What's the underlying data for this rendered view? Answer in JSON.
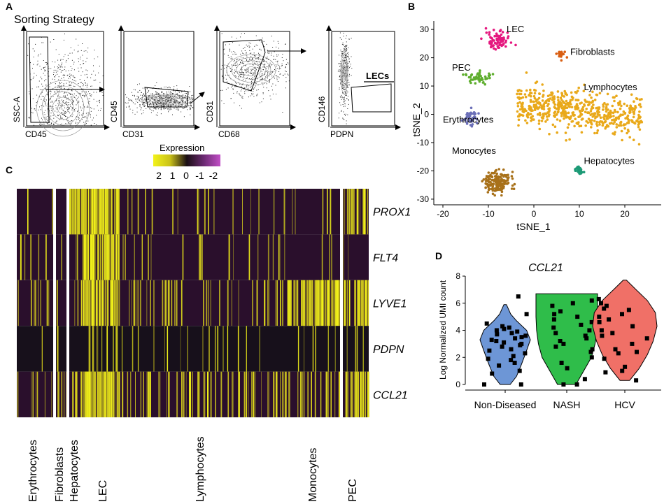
{
  "panels": {
    "a": "A",
    "b": "B",
    "c": "C",
    "d": "D"
  },
  "sorting": {
    "title": "Sorting Strategy",
    "gates": [
      {
        "ylabel": "SSC-A",
        "xlabel": "CD45"
      },
      {
        "ylabel": "CD45",
        "xlabel": "CD31"
      },
      {
        "ylabel": "CD31",
        "xlabel": "CD68"
      },
      {
        "ylabel": "CD146",
        "xlabel": "PDPN"
      }
    ],
    "gate_label": "LECs"
  },
  "chart_data": [
    {
      "type": "scatter",
      "title": "",
      "xlabel": "tSNE_1",
      "ylabel": "tSNE_2",
      "xlim": [
        -22,
        28
      ],
      "ylim": [
        -32,
        33
      ],
      "xticks": [
        -20,
        -10,
        0,
        10,
        20
      ],
      "yticks": [
        -30,
        -20,
        -10,
        0,
        10,
        20,
        30
      ],
      "clusters": [
        {
          "name": "LEC",
          "color": "#e5187f",
          "center": [
            -8,
            26
          ],
          "spread": [
            2.6,
            2.6
          ],
          "n": 80
        },
        {
          "name": "Fibroblasts",
          "color": "#d95f13",
          "center": [
            6,
            21
          ],
          "spread": [
            0.9,
            1.2
          ],
          "n": 20
        },
        {
          "name": "PEC",
          "color": "#5fae2f",
          "center": [
            -12,
            13
          ],
          "spread": [
            2.4,
            1.8
          ],
          "n": 50
        },
        {
          "name": "Lymphocytes",
          "color": "#e9a91a",
          "center": [
            10,
            1
          ],
          "spread": [
            11,
            3.8
          ],
          "n": 560
        },
        {
          "name": "Erythrocytes",
          "color": "#6b6fb8",
          "center": [
            -14,
            -1
          ],
          "spread": [
            1.8,
            3
          ],
          "n": 45
        },
        {
          "name": "Monocytes",
          "color": "#a8711a",
          "center": [
            -8,
            -24
          ],
          "spread": [
            2.4,
            3.2
          ],
          "n": 160
        },
        {
          "name": "Hepatocytes",
          "color": "#1c9a76",
          "center": [
            10,
            -20
          ],
          "spread": [
            0.9,
            1.6
          ],
          "n": 28
        }
      ],
      "labels": [
        "LEC",
        "Fibroblasts",
        "PEC",
        "Lymphocytes",
        "Erythrocytes",
        "Monocytes",
        "Hepatocytes"
      ]
    },
    {
      "type": "heatmap",
      "legend_title": "Expression",
      "legend_ticks": [
        "2",
        "1",
        "0",
        "-1",
        "-2"
      ],
      "rows": [
        "PROX1",
        "FLT4",
        "LYVE1",
        "PDPN",
        "CCL21"
      ],
      "groups": [
        {
          "name": "Erythrocytes",
          "levels": [
            0.02,
            0.05,
            0.15,
            0.05,
            0.1
          ]
        },
        {
          "name": "Fibroblasts",
          "levels": [
            0.02,
            0.02,
            0.05,
            0.05,
            0.1
          ]
        },
        {
          "name": "Hepatocytes",
          "levels": [
            0.85,
            0.02,
            0.1,
            0.05,
            0.25
          ]
        },
        {
          "name": "LEC",
          "levels": [
            0.95,
            0.95,
            0.8,
            0.15,
            0.95
          ]
        },
        {
          "name": "Lymphocytes",
          "levels": [
            0.05,
            0.05,
            0.1,
            0.05,
            0.2
          ]
        },
        {
          "name": "Monocytes",
          "levels": [
            0.05,
            0.02,
            0.6,
            0.05,
            0.15
          ]
        },
        {
          "name": "PEC",
          "levels": [
            0.6,
            0.02,
            0.7,
            0.05,
            0.4
          ]
        }
      ],
      "colors": {
        "low": "#2a0f2c",
        "pdpn_row": "#17101b",
        "high": "#f2f21a",
        "sep": "#ffffff"
      }
    },
    {
      "type": "violin",
      "title": "CCL21",
      "ylabel": "Log Normalized UMI count",
      "ylim": [
        0,
        8
      ],
      "yticks": [
        0,
        2,
        4,
        6,
        8
      ],
      "categories": [
        "Non-Diseased",
        "NASH",
        "HCV"
      ],
      "colors": [
        "#6d96d6",
        "#2fbd4a",
        "#f07067"
      ],
      "violins": [
        {
          "ymin": 0,
          "ymax": 5.9,
          "profile": [
            [
              0,
              0.2
            ],
            [
              0.6,
              0.45
            ],
            [
              1.5,
              0.65
            ],
            [
              2.5,
              0.85
            ],
            [
              3.3,
              1.0
            ],
            [
              4.0,
              0.85
            ],
            [
              4.7,
              0.45
            ],
            [
              5.2,
              0.22
            ],
            [
              5.9,
              0.05
            ]
          ],
          "points": [
            0,
            0.8,
            1.0,
            1.4,
            1.6,
            1.8,
            1.9,
            2.1,
            2.3,
            2.5,
            2.6,
            2.8,
            2.9,
            3.0,
            3.1,
            3.2,
            3.3,
            3.4,
            3.5,
            3.6,
            3.7,
            3.8,
            3.9,
            4.0,
            4.1,
            4.2,
            4.3,
            4.5,
            5.2,
            6.5,
            0
          ]
        },
        {
          "ymin": 0,
          "ymax": 6.7,
          "profile": [
            [
              0,
              0.3
            ],
            [
              1.0,
              0.55
            ],
            [
              2.0,
              0.8
            ],
            [
              3.0,
              0.92
            ],
            [
              4.0,
              0.98
            ],
            [
              5.0,
              1.0
            ],
            [
              6.0,
              1.0
            ],
            [
              6.7,
              1.0
            ]
          ],
          "points": [
            0,
            0,
            0.4,
            1.2,
            1.6,
            2.0,
            2.4,
            2.8,
            3.0,
            3.2,
            3.6,
            3.8,
            4.0,
            4.2,
            4.4,
            4.8,
            5.0,
            5.4,
            5.8,
            6.0,
            6.2,
            3.4,
            2.6,
            4.6,
            5.2
          ]
        },
        {
          "ymin": 0.3,
          "ymax": 7.7,
          "profile": [
            [
              0.3,
              0.15
            ],
            [
              1.2,
              0.45
            ],
            [
              2.2,
              0.7
            ],
            [
              3.2,
              0.88
            ],
            [
              4.3,
              1.0
            ],
            [
              5.3,
              0.95
            ],
            [
              6.2,
              0.7
            ],
            [
              7.0,
              0.35
            ],
            [
              7.7,
              0.05
            ]
          ],
          "points": [
            0.3,
            0.9,
            1.3,
            1.9,
            2.3,
            2.6,
            3.0,
            3.4,
            3.8,
            4.0,
            4.3,
            4.6,
            5.0,
            5.2,
            5.5,
            5.8,
            6.0,
            6.3,
            2.4,
            3.6,
            4.8,
            1.0,
            5.6
          ]
        }
      ]
    }
  ]
}
